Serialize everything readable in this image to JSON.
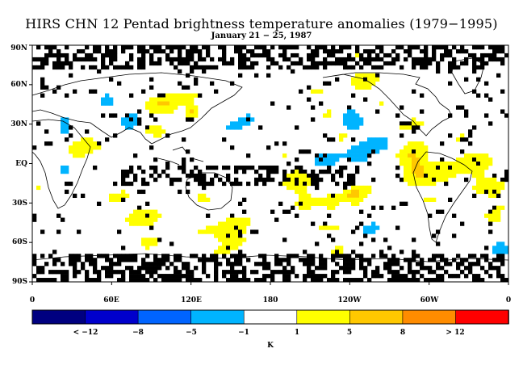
{
  "title": "HIRS CHN 12 Pentad brightness temperature anomalies (1979−1995)",
  "subtitle": "January 21 − 25, 1987",
  "map": {
    "lat_labels": [
      "90N",
      "60N",
      "30N",
      "EQ",
      "30S",
      "60S",
      "90S"
    ],
    "lon_labels": [
      "0",
      "60E",
      "120E",
      "180",
      "120W",
      "60W",
      "0"
    ]
  },
  "colorbar": {
    "colors": [
      "#000080",
      "#0000cc",
      "#0064ff",
      "#00b4ff",
      "#ffffff",
      "#ffff00",
      "#ffc800",
      "#ff8c00",
      "#ff0000"
    ],
    "labels": [
      "< −12",
      "−8",
      "−5",
      "−1",
      "1",
      "5",
      "8",
      "> 12"
    ],
    "unit": "K"
  },
  "colors": {
    "missing": "#000000",
    "neutral": "#ffffff",
    "coastline": "#000000"
  }
}
